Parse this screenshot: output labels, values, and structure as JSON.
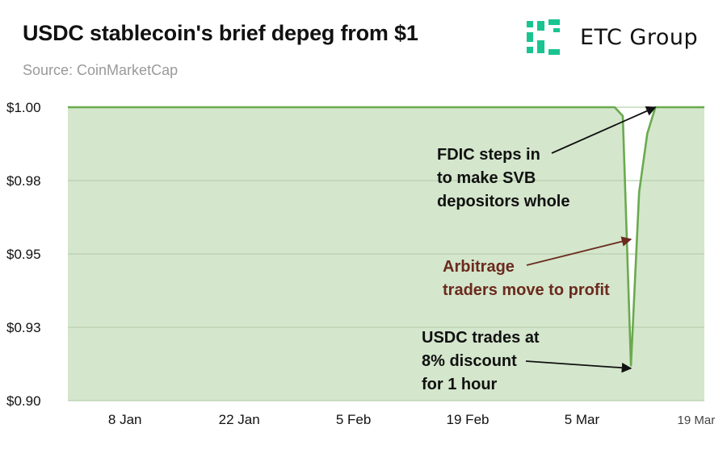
{
  "header": {
    "title": "USDC stablecoin's brief depeg from $1",
    "subtitle": "Source: CoinMarketCap"
  },
  "logo": {
    "name": "ETC Group",
    "color": "#19c490"
  },
  "chart_data": {
    "type": "area",
    "title": "USDC stablecoin's brief depeg from $1",
    "subtitle": "Source: CoinMarketCap",
    "xlabel": "",
    "ylabel": "",
    "x_tick_labels": [
      "8 Jan",
      "22 Jan",
      "5 Feb",
      "19 Feb",
      "5 Mar",
      "19 Mar"
    ],
    "y_tick_labels": [
      "$1.00",
      "$0.98",
      "$0.95",
      "$0.93",
      "$0.90"
    ],
    "y_tick_values": [
      1.0,
      0.975,
      0.95,
      0.925,
      0.9
    ],
    "ylim": [
      0.9,
      1.0
    ],
    "xlim": [
      "2023-01-01",
      "2023-03-20"
    ],
    "grid": true,
    "colors": {
      "line": "#6aaa4f",
      "fill": "#d4e6cc",
      "grid": "#b9d1ae"
    },
    "series": [
      {
        "x": [
          "2023-01-01",
          "2023-01-05",
          "2023-01-09",
          "2023-01-13",
          "2023-01-17",
          "2023-01-21",
          "2023-01-25",
          "2023-01-29",
          "2023-02-02",
          "2023-02-06",
          "2023-02-10",
          "2023-02-14",
          "2023-02-18",
          "2023-02-22",
          "2023-02-26",
          "2023-03-02",
          "2023-03-06",
          "2023-03-09",
          "2023-03-10",
          "2023-03-11",
          "2023-03-12",
          "2023-03-13",
          "2023-03-14",
          "2023-03-15",
          "2023-03-16",
          "2023-03-20"
        ],
        "values": [
          1.0,
          1.0,
          1.0,
          1.0,
          1.0,
          1.0,
          1.0,
          1.0,
          1.0,
          1.0,
          1.0,
          1.0,
          1.0,
          1.0,
          1.0,
          1.0,
          1.0,
          1.0,
          0.997,
          0.912,
          0.971,
          0.991,
          1.0,
          1.0,
          1.0,
          1.0
        ]
      }
    ],
    "annotations": [
      {
        "text_lines": [
          "FDIC steps in",
          "to make SVB",
          "depositors whole"
        ],
        "color": "#111111",
        "target": [
          "2023-03-14",
          1.0
        ]
      },
      {
        "text_lines": [
          "Arbitrage",
          "traders move to profit"
        ],
        "color": "#6b2a1e",
        "target": [
          "2023-03-11",
          0.955
        ]
      },
      {
        "text_lines": [
          "USDC trades at",
          "8% discount",
          "for 1 hour"
        ],
        "color": "#111111",
        "target": [
          "2023-03-11",
          0.911
        ]
      }
    ]
  }
}
